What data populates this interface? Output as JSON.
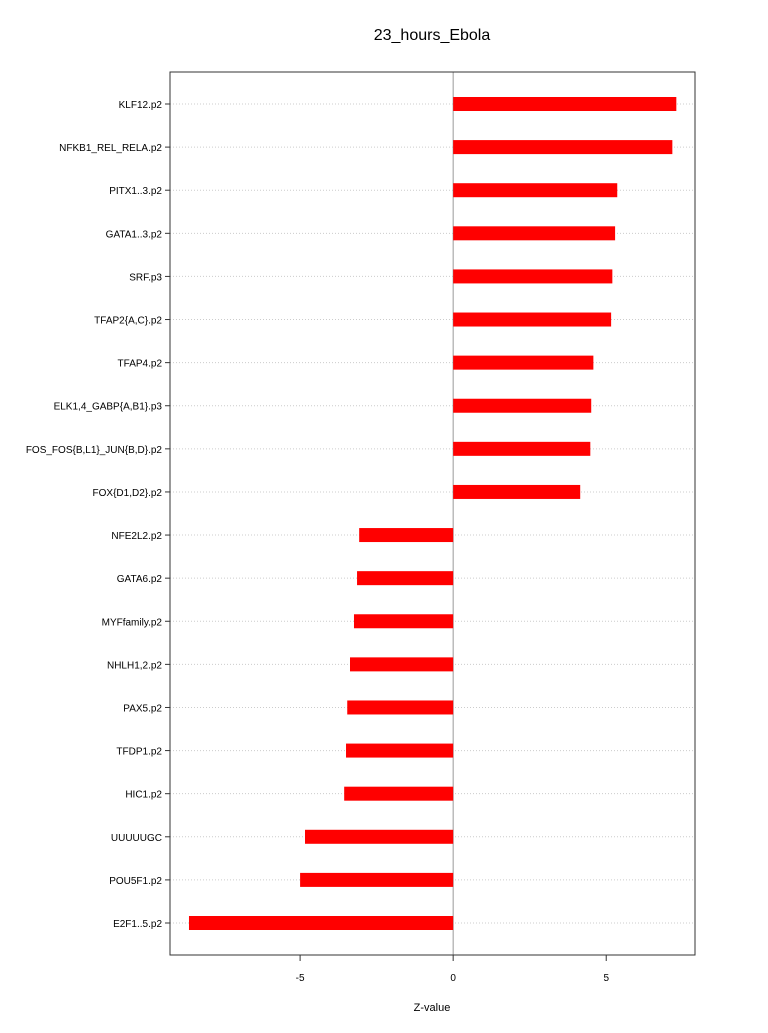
{
  "chart_data": {
    "type": "bar",
    "orientation": "horizontal",
    "title": "23_hours_Ebola",
    "xlabel": "Z-value",
    "ylabel": "",
    "xlim": [
      -9.25,
      7.9
    ],
    "xticks": [
      -5,
      0,
      5
    ],
    "xtick_labels": [
      "-5",
      "0",
      "5"
    ],
    "grid": "horizontal dotted",
    "bar_color": "#ff0000",
    "categories": [
      "KLF12.p2",
      "NFKB1_REL_RELA.p2",
      "PITX1..3.p2",
      "GATA1..3.p2",
      "SRF.p3",
      "TFAP2{A,C}.p2",
      "TFAP4.p2",
      "ELK1,4_GABP{A,B1}.p3",
      "FOS_FOS{B,L1}_JUN{B,D}.p2",
      "FOX{D1,D2}.p2",
      "NFE2L2.p2",
      "GATA6.p2",
      "MYFfamily.p2",
      "NHLH1,2.p2",
      "PAX5.p2",
      "TFDP1.p2",
      "HIC1.p2",
      "UUUUUGC",
      "POU5F1.p2",
      "E2F1..5.p2"
    ],
    "values": [
      7.29,
      7.16,
      5.36,
      5.29,
      5.2,
      5.16,
      4.58,
      4.51,
      4.48,
      4.15,
      -3.07,
      -3.14,
      -3.24,
      -3.37,
      -3.46,
      -3.5,
      -3.56,
      -4.84,
      -5.0,
      -8.63
    ]
  }
}
